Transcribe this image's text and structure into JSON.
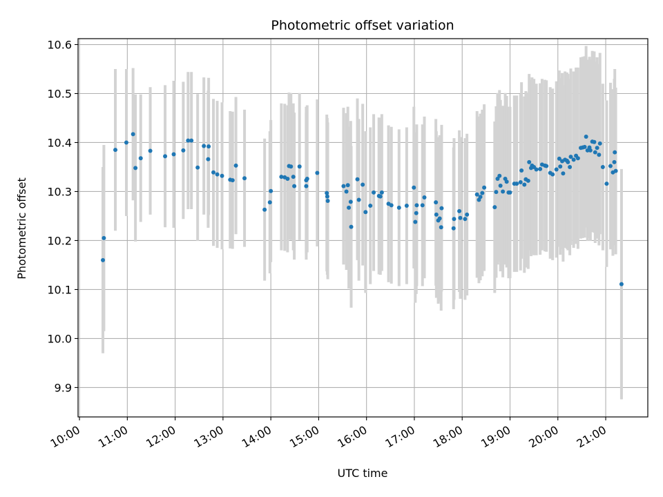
{
  "chart_data": {
    "type": "scatter",
    "title": "Photometric offset variation",
    "xlabel": "UTC time",
    "ylabel": "Photometric offset",
    "x_unit": "hours UTC",
    "xlim": [
      9.97,
      21.88
    ],
    "ylim": [
      9.84,
      10.612
    ],
    "x_ticks": [
      "10:00",
      "11:00",
      "12:00",
      "13:00",
      "14:00",
      "15:00",
      "16:00",
      "17:00",
      "18:00",
      "19:00",
      "20:00",
      "21:00"
    ],
    "y_ticks": [
      "9.9",
      "10.0",
      "10.1",
      "10.2",
      "10.3",
      "10.4",
      "10.5",
      "10.6"
    ],
    "grid": true,
    "colors": {
      "points": "#1f77b4",
      "errorbars": "#d3d3d3",
      "grid": "#b0b0b0"
    },
    "series": [
      {
        "values": [
          [
            10.49,
            10.16,
            0.19
          ],
          [
            10.51,
            10.205,
            0.19
          ],
          [
            10.75,
            10.385,
            0.165
          ],
          [
            10.98,
            10.4,
            0.15
          ],
          [
            11.12,
            10.417,
            0.135
          ],
          [
            11.17,
            10.348,
            0.15
          ],
          [
            11.28,
            10.368,
            0.13
          ],
          [
            11.48,
            10.383,
            0.13
          ],
          [
            11.79,
            10.372,
            0.145
          ],
          [
            11.97,
            10.376,
            0.15
          ],
          [
            12.17,
            10.384,
            0.14
          ],
          [
            12.27,
            10.404,
            0.14
          ],
          [
            12.34,
            10.404,
            0.14
          ],
          [
            12.47,
            10.349,
            0.15
          ],
          [
            12.6,
            10.393,
            0.14
          ],
          [
            12.7,
            10.392,
            0.14
          ],
          [
            12.69,
            10.366,
            0.14
          ],
          [
            12.8,
            10.339,
            0.15
          ],
          [
            12.88,
            10.335,
            0.15
          ],
          [
            12.98,
            10.332,
            0.15
          ],
          [
            13.15,
            10.324,
            0.14
          ],
          [
            13.2,
            10.323,
            0.14
          ],
          [
            13.27,
            10.353,
            0.14
          ],
          [
            13.45,
            10.327,
            0.14
          ],
          [
            13.87,
            10.263,
            0.145
          ],
          [
            13.98,
            10.278,
            0.145
          ],
          [
            14.0,
            10.301,
            0.145
          ],
          [
            14.22,
            10.33,
            0.15
          ],
          [
            14.29,
            10.329,
            0.15
          ],
          [
            14.35,
            10.326,
            0.15
          ],
          [
            14.38,
            10.352,
            0.15
          ],
          [
            14.42,
            10.351,
            0.15
          ],
          [
            14.47,
            10.33,
            0.15
          ],
          [
            14.49,
            10.311,
            0.15
          ],
          [
            14.6,
            10.351,
            0.15
          ],
          [
            14.74,
            10.323,
            0.15
          ],
          [
            14.76,
            10.326,
            0.15
          ],
          [
            14.74,
            10.311,
            0.15
          ],
          [
            14.97,
            10.338,
            0.15
          ],
          [
            15.17,
            10.297,
            0.16
          ],
          [
            15.18,
            10.29,
            0.16
          ],
          [
            15.19,
            10.281,
            0.16
          ],
          [
            15.52,
            10.311,
            0.16
          ],
          [
            15.61,
            10.313,
            0.16
          ],
          [
            15.58,
            10.3,
            0.16
          ],
          [
            15.63,
            10.267,
            0.165
          ],
          [
            15.67,
            10.279,
            0.165
          ],
          [
            15.68,
            10.228,
            0.165
          ],
          [
            15.81,
            10.325,
            0.165
          ],
          [
            15.84,
            10.283,
            0.165
          ],
          [
            15.92,
            10.314,
            0.165
          ],
          [
            15.98,
            10.258,
            0.165
          ],
          [
            16.08,
            10.271,
            0.16
          ],
          [
            16.15,
            10.298,
            0.16
          ],
          [
            16.26,
            10.291,
            0.16
          ],
          [
            16.29,
            10.29,
            0.16
          ],
          [
            16.32,
            10.298,
            0.16
          ],
          [
            16.46,
            10.275,
            0.16
          ],
          [
            16.52,
            10.272,
            0.16
          ],
          [
            16.68,
            10.267,
            0.16
          ],
          [
            16.84,
            10.271,
            0.16
          ],
          [
            16.99,
            10.308,
            0.165
          ],
          [
            17.02,
            10.238,
            0.165
          ],
          [
            17.04,
            10.256,
            0.165
          ],
          [
            17.05,
            10.272,
            0.165
          ],
          [
            17.17,
            10.272,
            0.165
          ],
          [
            17.21,
            10.288,
            0.165
          ],
          [
            17.45,
            10.278,
            0.17
          ],
          [
            17.46,
            10.253,
            0.17
          ],
          [
            17.5,
            10.241,
            0.17
          ],
          [
            17.53,
            10.245,
            0.17
          ],
          [
            17.57,
            10.266,
            0.17
          ],
          [
            17.56,
            10.227,
            0.17
          ],
          [
            17.82,
            10.225,
            0.165
          ],
          [
            17.83,
            10.244,
            0.165
          ],
          [
            17.94,
            10.26,
            0.165
          ],
          [
            17.96,
            10.246,
            0.165
          ],
          [
            18.06,
            10.244,
            0.165
          ],
          [
            18.1,
            10.253,
            0.165
          ],
          [
            18.31,
            10.294,
            0.17
          ],
          [
            18.35,
            10.283,
            0.17
          ],
          [
            18.38,
            10.289,
            0.17
          ],
          [
            18.42,
            10.297,
            0.17
          ],
          [
            18.46,
            10.308,
            0.17
          ],
          [
            18.68,
            10.268,
            0.175
          ],
          [
            18.71,
            10.299,
            0.175
          ],
          [
            18.74,
            10.326,
            0.175
          ],
          [
            18.78,
            10.332,
            0.175
          ],
          [
            18.8,
            10.312,
            0.175
          ],
          [
            18.85,
            10.3,
            0.175
          ],
          [
            18.9,
            10.326,
            0.175
          ],
          [
            18.93,
            10.32,
            0.175
          ],
          [
            18.97,
            10.298,
            0.175
          ],
          [
            19.0,
            10.298,
            0.175
          ],
          [
            19.09,
            10.316,
            0.18
          ],
          [
            19.14,
            10.316,
            0.18
          ],
          [
            19.22,
            10.319,
            0.18
          ],
          [
            19.24,
            10.343,
            0.18
          ],
          [
            19.3,
            10.314,
            0.18
          ],
          [
            19.33,
            10.325,
            0.18
          ],
          [
            19.38,
            10.322,
            0.18
          ],
          [
            19.4,
            10.36,
            0.18
          ],
          [
            19.44,
            10.348,
            0.18
          ],
          [
            19.46,
            10.353,
            0.18
          ],
          [
            19.5,
            10.35,
            0.18
          ],
          [
            19.55,
            10.345,
            0.175
          ],
          [
            19.63,
            10.346,
            0.175
          ],
          [
            19.67,
            10.355,
            0.175
          ],
          [
            19.73,
            10.353,
            0.175
          ],
          [
            19.76,
            10.352,
            0.175
          ],
          [
            19.84,
            10.338,
            0.175
          ],
          [
            19.89,
            10.335,
            0.175
          ],
          [
            19.97,
            10.345,
            0.18
          ],
          [
            20.03,
            10.367,
            0.18
          ],
          [
            20.05,
            10.351,
            0.18
          ],
          [
            20.09,
            10.362,
            0.18
          ],
          [
            20.11,
            10.337,
            0.18
          ],
          [
            20.15,
            10.365,
            0.18
          ],
          [
            20.19,
            10.363,
            0.18
          ],
          [
            20.21,
            10.36,
            0.18
          ],
          [
            20.25,
            10.35,
            0.18
          ],
          [
            20.27,
            10.371,
            0.18
          ],
          [
            20.33,
            10.365,
            0.18
          ],
          [
            20.38,
            10.373,
            0.18
          ],
          [
            20.42,
            10.368,
            0.185
          ],
          [
            20.48,
            10.389,
            0.185
          ],
          [
            20.52,
            10.39,
            0.185
          ],
          [
            20.56,
            10.391,
            0.185
          ],
          [
            20.59,
            10.412,
            0.185
          ],
          [
            20.62,
            10.384,
            0.185
          ],
          [
            20.66,
            10.39,
            0.185
          ],
          [
            20.68,
            10.384,
            0.185
          ],
          [
            20.72,
            10.402,
            0.185
          ],
          [
            20.76,
            10.401,
            0.185
          ],
          [
            20.78,
            10.38,
            0.185
          ],
          [
            20.82,
            10.389,
            0.185
          ],
          [
            20.86,
            10.375,
            0.185
          ],
          [
            20.88,
            10.398,
            0.185
          ],
          [
            20.94,
            10.35,
            0.17
          ],
          [
            21.02,
            10.316,
            0.17
          ],
          [
            21.1,
            10.352,
            0.17
          ],
          [
            21.15,
            10.339,
            0.17
          ],
          [
            21.18,
            10.36,
            0.17
          ],
          [
            21.19,
            10.38,
            0.17
          ],
          [
            21.21,
            10.342,
            0.17
          ],
          [
            21.33,
            10.111,
            0.235
          ]
        ]
      }
    ]
  }
}
